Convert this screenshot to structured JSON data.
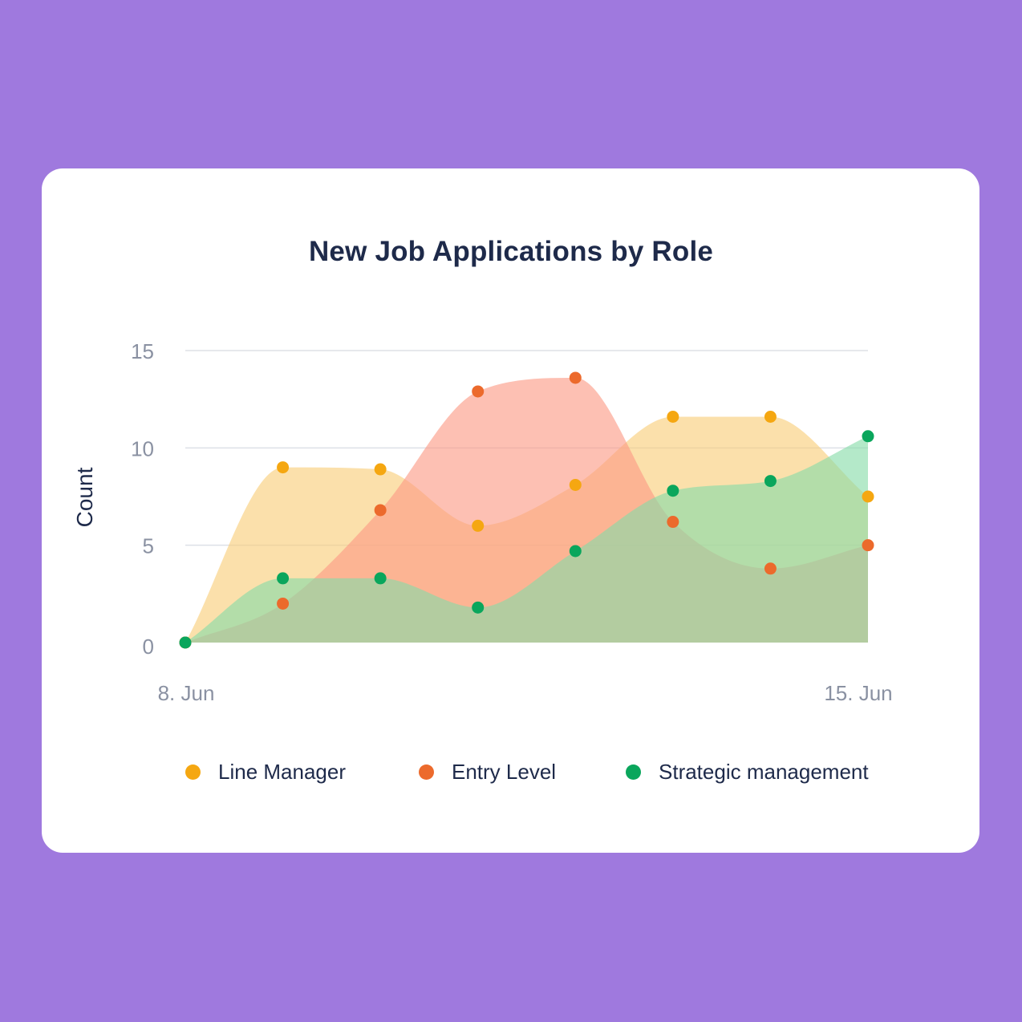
{
  "chart_data": {
    "type": "area",
    "title": "New Job Applications by Role",
    "ylabel": "Count",
    "xlabel": "",
    "x_tick_labels": [
      "8. Jun",
      "15. Jun"
    ],
    "x": [
      "2021-06-08",
      "2021-06-09",
      "2021-06-10",
      "2021-06-11",
      "2021-06-12",
      "2021-06-13",
      "2021-06-14",
      "2021-06-15"
    ],
    "ylim": [
      0,
      15
    ],
    "yticks": [
      0,
      5,
      10,
      15
    ],
    "grid": true,
    "legend_position": "bottom",
    "series": [
      {
        "name": "Line Manager",
        "color": "#f5a711",
        "fill": "#f8cd77",
        "values": [
          0,
          9,
          8.9,
          6,
          8.1,
          11.6,
          11.6,
          7.5
        ]
      },
      {
        "name": "Entry Level",
        "color": "#ec6a2c",
        "fill": "#fb9a84",
        "values": [
          0,
          2,
          6.8,
          12.9,
          13.6,
          6.2,
          3.8,
          5
        ]
      },
      {
        "name": "Strategic management",
        "color": "#0aa65c",
        "fill": "#86dba8",
        "values": [
          0,
          3.3,
          3.3,
          1.8,
          4.7,
          7.8,
          8.3,
          10.6
        ]
      }
    ]
  }
}
